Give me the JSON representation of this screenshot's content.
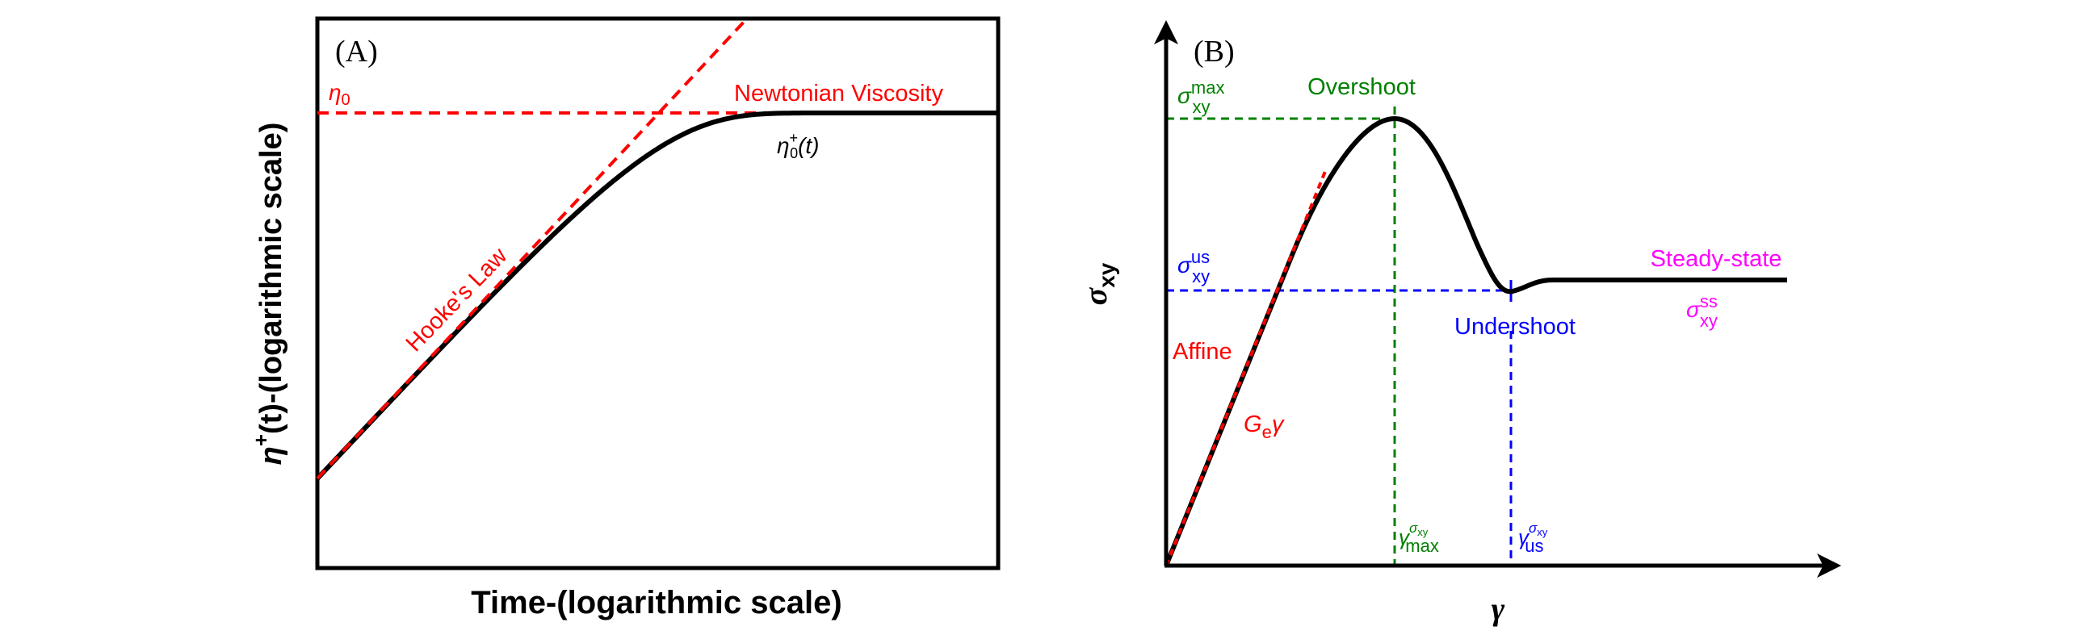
{
  "colors": {
    "curve": "#000000",
    "red": "#ff0000",
    "green": "#008000",
    "blue": "#0000ff",
    "magenta": "#ff00ff"
  },
  "panel_a": {
    "panel_label": "(A)",
    "y_axis_label": {
      "eta": "η",
      "sup": "+",
      "rest": "(t)-(logarithmic scale)"
    },
    "x_axis_label": "Time-(logarithmic scale)",
    "eta0_label": {
      "base": "η",
      "sub": "0"
    },
    "newtonian_label": "Newtonian Viscosity",
    "hooke_label": "Hooke's Law",
    "curve_label": {
      "base": "η",
      "sub": "0",
      "sup": "+",
      "rest": "(t)"
    }
  },
  "panel_b": {
    "panel_label": "(B)",
    "y_axis_label": {
      "base": "σ",
      "sub": "xy"
    },
    "x_axis_label": "γ",
    "sigma_max_label": {
      "base": "σ",
      "sub": "xy",
      "sup": "max"
    },
    "overshoot_label": "Overshoot",
    "sigma_us_label": {
      "base": "σ",
      "sub": "xy",
      "sup": "us"
    },
    "undershoot_label": "Undershoot",
    "steady_state_label": "Steady-state",
    "sigma_ss_label": {
      "base": "σ",
      "sub": "xy",
      "sup": "ss"
    },
    "affine_label": "Affine",
    "modulus_label": {
      "g": "G",
      "sub": "e",
      "gamma": "γ"
    },
    "gamma_max_label": {
      "base": "γ",
      "sub": "max",
      "sup": "σ",
      "supsub": "xy"
    },
    "gamma_us_label": {
      "base": "γ",
      "sub": "us",
      "sup": "σ",
      "supsub": "xy"
    }
  }
}
